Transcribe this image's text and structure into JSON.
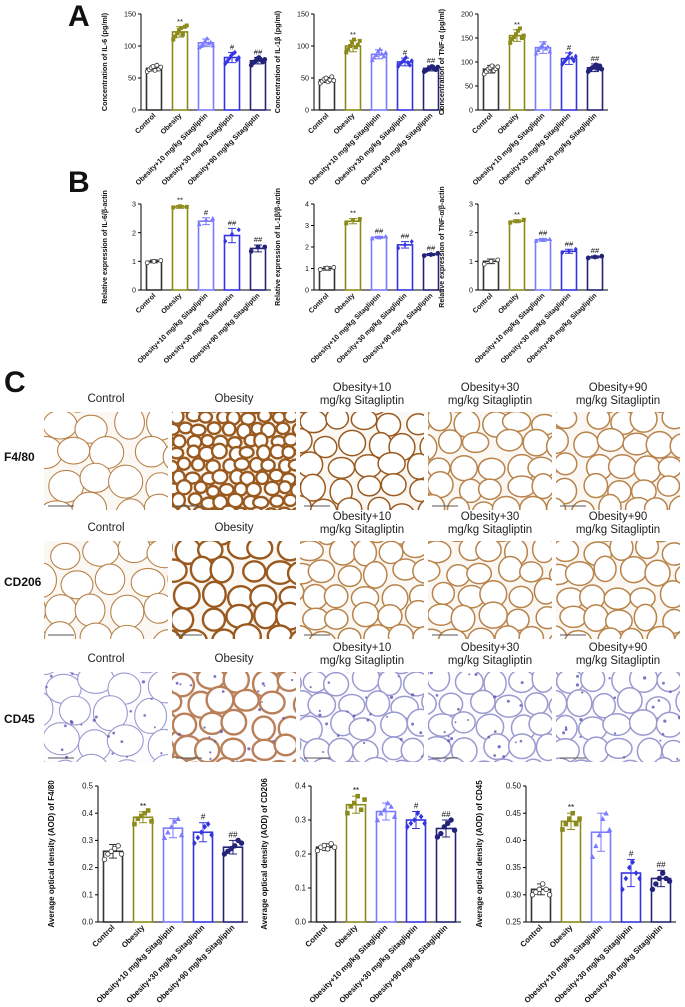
{
  "panels": {
    "a": "A",
    "b": "B",
    "c": "C"
  },
  "groups": [
    "Control",
    "Obesity",
    "Obesity+10 mg/kg Sitagliptin",
    "Obesity+30 mg/kg Sitagliptin",
    "Obesity+90 mg/kg Sitagliptin"
  ],
  "colors": {
    "control": "#333333",
    "obesity": "#8b8b1c",
    "sita10": "#7b7bff",
    "sita30": "#3535e0",
    "sita90": "#23237a"
  },
  "micrographs": {
    "rows": [
      {
        "label": "F4/80",
        "stain": "dab",
        "titles": [
          "Control",
          "Obesity",
          "Obesity+10\nmg/kg Sitagliptin",
          "Obesity+30\nmg/kg Sitagliptin",
          "Obesity+90\nmg/kg Sitagliptin"
        ]
      },
      {
        "label": "CD206",
        "stain": "dab",
        "titles": [
          "Control",
          "Obesity",
          "Obesity+10\nmg/kg Sitagliptin",
          "Obesity+30\nmg/kg Sitagliptin",
          "Obesity+90\nmg/kg Sitagliptin"
        ]
      },
      {
        "label": "CD45",
        "stain": "hematoxylin",
        "titles": [
          "Control",
          "Obesity",
          "Obesity+10\nmg/kg Sitagliptin",
          "Obesity+30\nmg/kg Sitagliptin",
          "Obesity+90\nmg/kg Sitagliptin"
        ]
      }
    ]
  },
  "chart_data": [
    {
      "id": "a1",
      "type": "bar",
      "panel": "A",
      "ylabel": "Concentration of IL-6 (pg/ml)",
      "ylim": [
        0,
        150
      ],
      "yticks": [
        0,
        50,
        100,
        150
      ],
      "categories": [
        "Control",
        "Obesity",
        "Obesity+10 mg/kg Sitagliptin",
        "Obesity+30 mg/kg Sitagliptin",
        "Obesity+90 mg/kg Sitagliptin"
      ],
      "values": [
        65,
        122,
        105,
        82,
        77
      ],
      "errors": [
        4,
        8,
        6,
        8,
        5
      ],
      "annotations": [
        "",
        "**",
        "",
        "#",
        "##"
      ],
      "points": [
        [
          60,
          63,
          66,
          68,
          62,
          70,
          64,
          67
        ],
        [
          110,
          115,
          120,
          125,
          128,
          118,
          130,
          132
        ],
        [
          98,
          100,
          103,
          108,
          112,
          104,
          106,
          101
        ],
        [
          72,
          76,
          80,
          85,
          88,
          90,
          78,
          82
        ],
        [
          70,
          74,
          76,
          80,
          82,
          78,
          75,
          79
        ]
      ]
    },
    {
      "id": "a2",
      "type": "bar",
      "panel": "A",
      "ylabel": "Concentration of IL-1β (pg/ml)",
      "ylim": [
        0,
        150
      ],
      "yticks": [
        0,
        50,
        100,
        150
      ],
      "categories": [
        "Control",
        "Obesity",
        "Obesity+10 mg/kg Sitagliptin",
        "Obesity+30 mg/kg Sitagliptin",
        "Obesity+90 mg/kg Sitagliptin"
      ],
      "values": [
        47,
        100,
        87,
        75,
        65
      ],
      "errors": [
        4,
        9,
        7,
        6,
        4
      ],
      "annotations": [
        "",
        "**",
        "",
        "#",
        "##"
      ],
      "points": [
        [
          42,
          45,
          48,
          50,
          44,
          47,
          52,
          46
        ],
        [
          90,
          95,
          100,
          105,
          110,
          98,
          102,
          108
        ],
        [
          78,
          82,
          86,
          92,
          95,
          88,
          84,
          90
        ],
        [
          68,
          72,
          75,
          78,
          82,
          74,
          70,
          77
        ],
        [
          60,
          62,
          64,
          66,
          68,
          65,
          63,
          67
        ]
      ]
    },
    {
      "id": "a3",
      "type": "bar",
      "panel": "A",
      "ylabel": "Concentration of TNF-α (pg/ml)",
      "ylim": [
        0,
        200
      ],
      "yticks": [
        0,
        50,
        100,
        150,
        200
      ],
      "categories": [
        "Control",
        "Obesity",
        "Obesity+10 mg/kg Sitagliptin",
        "Obesity+30 mg/kg Sitagliptin",
        "Obesity+90 mg/kg Sitagliptin"
      ],
      "values": [
        85,
        155,
        130,
        107,
        88
      ],
      "errors": [
        8,
        12,
        12,
        12,
        8
      ],
      "annotations": [
        "",
        "**",
        "",
        "#",
        "##"
      ],
      "points": [
        [
          75,
          80,
          85,
          88,
          92,
          82,
          86,
          90
        ],
        [
          140,
          148,
          152,
          158,
          165,
          170,
          150,
          155
        ],
        [
          118,
          125,
          130,
          135,
          140,
          128,
          132,
          122
        ],
        [
          95,
          100,
          105,
          110,
          118,
          108,
          102,
          112
        ],
        [
          80,
          84,
          88,
          90,
          94,
          86,
          92,
          85
        ]
      ]
    },
    {
      "id": "b1",
      "type": "bar",
      "panel": "B",
      "ylabel": "Relative expression of IL-6/β-actin",
      "ylim": [
        0,
        3
      ],
      "yticks": [
        0,
        1,
        2,
        3
      ],
      "categories": [
        "Control",
        "Obesity",
        "Obesity+10 mg/kg Sitagliptin",
        "Obesity+30 mg/kg Sitagliptin",
        "Obesity+90 mg/kg Sitagliptin"
      ],
      "values": [
        1.0,
        2.9,
        2.4,
        1.9,
        1.45
      ],
      "errors": [
        0.05,
        0.05,
        0.12,
        0.25,
        0.12
      ],
      "annotations": [
        "",
        "**",
        "#",
        "##",
        "##"
      ],
      "points": [
        [
          0.95,
          1.0,
          1.03
        ],
        [
          2.88,
          2.92,
          2.9
        ],
        [
          2.3,
          2.45,
          2.5
        ],
        [
          1.7,
          1.95,
          2.1
        ],
        [
          1.35,
          1.5,
          1.5
        ]
      ]
    },
    {
      "id": "b2",
      "type": "bar",
      "panel": "B",
      "ylabel": "Relative expression of IL-1β/β-actin",
      "ylim": [
        0,
        4
      ],
      "yticks": [
        0,
        1,
        2,
        3,
        4
      ],
      "categories": [
        "Control",
        "Obesity",
        "Obesity+10 mg/kg Sitagliptin",
        "Obesity+30 mg/kg Sitagliptin",
        "Obesity+90 mg/kg Sitagliptin"
      ],
      "values": [
        1.0,
        3.2,
        2.45,
        2.1,
        1.65
      ],
      "errors": [
        0.08,
        0.12,
        0.05,
        0.15,
        0.05
      ],
      "annotations": [
        "",
        "**",
        "##",
        "##",
        "##"
      ],
      "points": [
        [
          0.95,
          1.02,
          1.05
        ],
        [
          3.1,
          3.25,
          3.3
        ],
        [
          2.4,
          2.45,
          2.5
        ],
        [
          1.95,
          2.1,
          2.25
        ],
        [
          1.6,
          1.65,
          1.7
        ]
      ]
    },
    {
      "id": "b3",
      "type": "bar",
      "panel": "B",
      "ylabel": "Relative expression of TNF-α/β-actin",
      "ylim": [
        0,
        3
      ],
      "yticks": [
        0,
        1,
        2,
        3
      ],
      "categories": [
        "Control",
        "Obesity",
        "Obesity+10 mg/kg Sitagliptin",
        "Obesity+30 mg/kg Sitagliptin",
        "Obesity+90 mg/kg Sitagliptin"
      ],
      "values": [
        1.0,
        2.4,
        1.75,
        1.35,
        1.15
      ],
      "errors": [
        0.08,
        0.05,
        0.05,
        0.07,
        0.04
      ],
      "annotations": [
        "",
        "**",
        "##",
        "##",
        "##"
      ],
      "points": [
        [
          0.9,
          1.0,
          1.05
        ],
        [
          2.35,
          2.4,
          2.45
        ],
        [
          1.72,
          1.75,
          1.78
        ],
        [
          1.3,
          1.35,
          1.42
        ],
        [
          1.12,
          1.15,
          1.18
        ]
      ]
    },
    {
      "id": "c1",
      "type": "bar",
      "panel": "C",
      "ylabel": "Average optical density (AOD) of F4/80",
      "ylim": [
        0,
        0.5
      ],
      "yticks": [
        0.0,
        0.1,
        0.2,
        0.3,
        0.4,
        0.5
      ],
      "categories": [
        "Control",
        "Obesity",
        "Obesity+10 mg/kg Sitagliptin",
        "Obesity+30 mg/kg Sitagliptin",
        "Obesity+90 mg/kg Sitagliptin"
      ],
      "values": [
        0.26,
        0.385,
        0.345,
        0.33,
        0.275
      ],
      "errors": [
        0.025,
        0.02,
        0.035,
        0.035,
        0.025
      ],
      "annotations": [
        "",
        "**",
        "",
        "#",
        "##"
      ],
      "points": [
        [
          0.23,
          0.25,
          0.26,
          0.27,
          0.28,
          0.25
        ],
        [
          0.36,
          0.38,
          0.39,
          0.4,
          0.41,
          0.37
        ],
        [
          0.31,
          0.33,
          0.35,
          0.37,
          0.38,
          0.32
        ],
        [
          0.29,
          0.31,
          0.33,
          0.35,
          0.36,
          0.32
        ],
        [
          0.25,
          0.26,
          0.27,
          0.28,
          0.3,
          0.29
        ]
      ]
    },
    {
      "id": "c2",
      "type": "bar",
      "panel": "C",
      "ylabel": "Average optical density (AOD) of CD206",
      "ylim": [
        0,
        0.4
      ],
      "yticks": [
        0.0,
        0.1,
        0.2,
        0.3,
        0.4
      ],
      "categories": [
        "Control",
        "Obesity",
        "Obesity+10 mg/kg Sitagliptin",
        "Obesity+30 mg/kg Sitagliptin",
        "Obesity+90 mg/kg Sitagliptin"
      ],
      "values": [
        0.22,
        0.345,
        0.325,
        0.3,
        0.275
      ],
      "errors": [
        0.01,
        0.025,
        0.025,
        0.025,
        0.025
      ],
      "annotations": [
        "",
        "**",
        "",
        "#",
        "##"
      ],
      "points": [
        [
          0.21,
          0.22,
          0.225,
          0.215,
          0.23,
          0.22
        ],
        [
          0.32,
          0.34,
          0.35,
          0.37,
          0.33,
          0.36
        ],
        [
          0.3,
          0.32,
          0.33,
          0.35,
          0.34,
          0.31
        ],
        [
          0.28,
          0.29,
          0.3,
          0.32,
          0.31,
          0.29
        ],
        [
          0.25,
          0.26,
          0.28,
          0.29,
          0.3,
          0.27
        ]
      ]
    },
    {
      "id": "c3",
      "type": "bar",
      "panel": "C",
      "ylabel": "Average optical density (AOD) of CD45",
      "ylim": [
        0.25,
        0.5
      ],
      "yticks": [
        0.25,
        0.3,
        0.35,
        0.4,
        0.45,
        0.5
      ],
      "categories": [
        "Control",
        "Obesity",
        "Obesity+10 mg/kg Sitagliptin",
        "Obesity+30 mg/kg Sitagliptin",
        "Obesity+90 mg/kg Sitagliptin"
      ],
      "values": [
        0.31,
        0.435,
        0.415,
        0.34,
        0.33
      ],
      "errors": [
        0.01,
        0.015,
        0.035,
        0.025,
        0.015
      ],
      "annotations": [
        "",
        "**",
        "",
        "#",
        "##"
      ],
      "points": [
        [
          0.3,
          0.305,
          0.31,
          0.32,
          0.31,
          0.3
        ],
        [
          0.42,
          0.43,
          0.44,
          0.45,
          0.43,
          0.44
        ],
        [
          0.37,
          0.39,
          0.41,
          0.44,
          0.45,
          0.42
        ],
        [
          0.31,
          0.33,
          0.35,
          0.36,
          0.34,
          0.33
        ],
        [
          0.31,
          0.32,
          0.33,
          0.34,
          0.33,
          0.325
        ]
      ]
    }
  ]
}
